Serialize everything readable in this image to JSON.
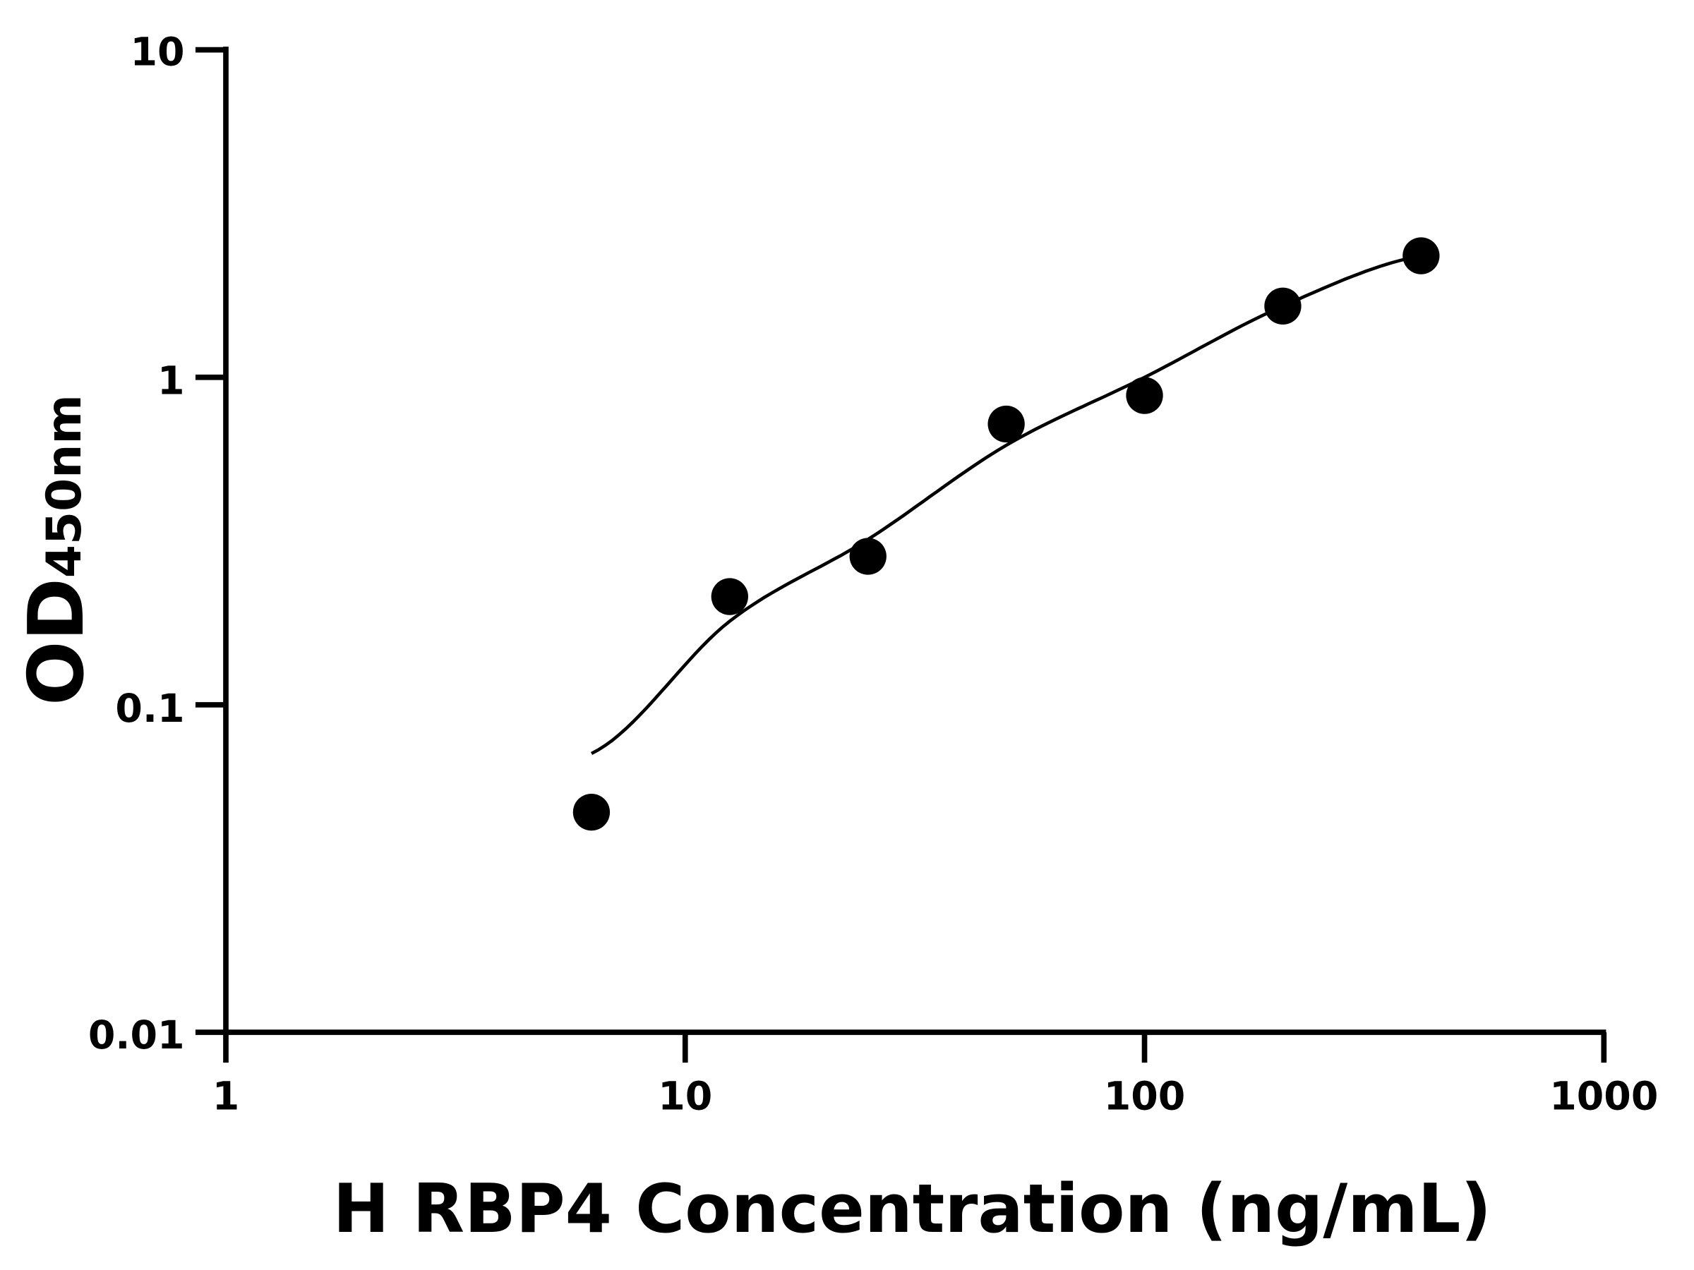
{
  "chart_data": {
    "type": "scatter",
    "title": "",
    "xlabel": "H RBP4 Concentration (ng/mL)",
    "ylabel_main": "OD",
    "ylabel_sub": "450nm",
    "x_scale": "log",
    "y_scale": "log",
    "xlim": [
      1,
      1000
    ],
    "ylim": [
      0.01,
      10
    ],
    "x_ticks": [
      "1",
      "10",
      "100",
      "1000"
    ],
    "y_ticks": [
      "0.01",
      "0.1",
      "1",
      "10"
    ],
    "grid": false,
    "legend": "none",
    "series": [
      {
        "type": "scatter",
        "color": "#000000",
        "x": [
          6.25,
          12.5,
          25,
          50,
          100,
          200,
          400
        ],
        "y": [
          0.047,
          0.214,
          0.284,
          0.72,
          0.88,
          1.65,
          2.35
        ]
      },
      {
        "type": "line",
        "color": "#000000",
        "x": [
          6.25,
          12.5,
          25,
          50,
          100,
          200,
          400
        ],
        "y": [
          0.071,
          0.18,
          0.32,
          0.62,
          1.0,
          1.65,
          2.35
        ]
      }
    ]
  }
}
